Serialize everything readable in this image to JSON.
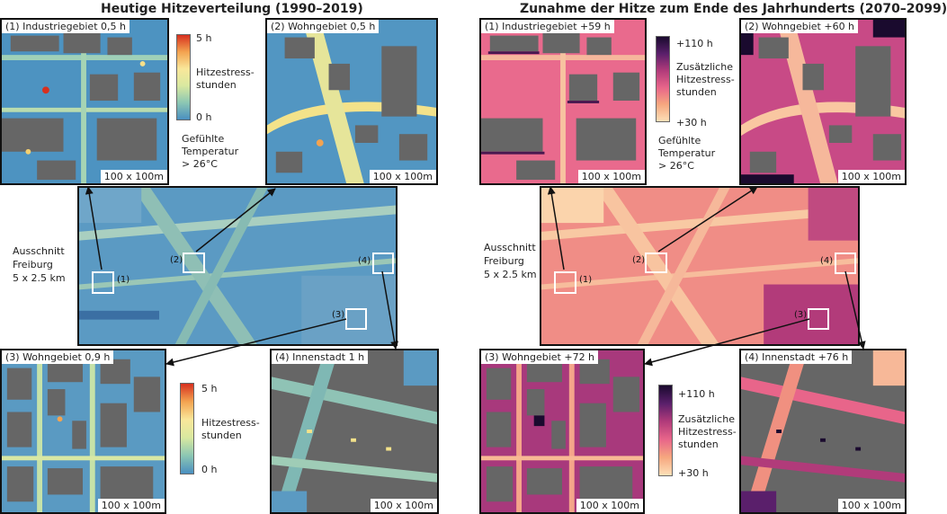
{
  "left": {
    "title": "Heutige Hitzeverteilung (1990–2019)",
    "panels": [
      {
        "label": "(1) Industriegebiet 0,5 h",
        "scale": "100 x 100m"
      },
      {
        "label": "(2) Wohngebiet 0,5 h",
        "scale": "100 x 100m"
      },
      {
        "label": "(3) Wohngebiet 0,9 h",
        "scale": "100 x 100m"
      },
      {
        "label": "(4) Innenstadt 1 h",
        "scale": "100 x 100m"
      }
    ],
    "legend_top": {
      "max": "5 h",
      "min": "0 h",
      "name_line1": "Hitzestress-",
      "name_line2": "stunden",
      "note_line1": "Gefühlte",
      "note_line2": "Temperatur",
      "note_line3": "> 26°C"
    },
    "legend_bottom": {
      "max": "5 h",
      "min": "0 h",
      "name_line1": "Hitzestress-",
      "name_line2": "stunden"
    },
    "side_line1": "Ausschnitt",
    "side_line2": "Freiburg",
    "side_line3": "5 x 2.5 km",
    "box_labels": [
      "(1)",
      "(2)",
      "(3)",
      "(4)"
    ]
  },
  "right": {
    "title": "Zunahme der Hitze zum Ende des Jahrhunderts (2070–2099)",
    "panels": [
      {
        "label": "(1) Industriegebiet  +59 h",
        "scale": "100 x 100m"
      },
      {
        "label": "(2) Wohngebiet +60 h",
        "scale": "100 x 100m"
      },
      {
        "label": "(3) Wohngebiet +72 h",
        "scale": "100 x 100m"
      },
      {
        "label": "(4) Innenstadt +76 h",
        "scale": "100 x 100m"
      }
    ],
    "legend_top": {
      "max": "+110 h",
      "min": "+30 h",
      "name_line1": "Zusätzliche",
      "name_line2": "Hitzestress-",
      "name_line3": "stunden",
      "note_line1": "Gefühlte",
      "note_line2": "Temperatur",
      "note_line3": "> 26°C"
    },
    "legend_bottom": {
      "max": "+110 h",
      "min": "+30 h",
      "name_line1": "Zusätzliche",
      "name_line2": "Hitzestress-",
      "name_line3": "stunden"
    },
    "side_line1": "Ausschnitt",
    "side_line2": "Freiburg",
    "side_line3": "5 x 2.5 km",
    "box_labels": [
      "(1)",
      "(2)",
      "(3)",
      "(4)"
    ]
  },
  "colors": {
    "building": "#666666",
    "now_low": "#4a8fc0",
    "now_mid": "#d9e8a0",
    "now_high": "#d7301f",
    "future_low": "#fde0b8",
    "future_mid": "#e8658a",
    "future_high": "#1a0a2e"
  }
}
